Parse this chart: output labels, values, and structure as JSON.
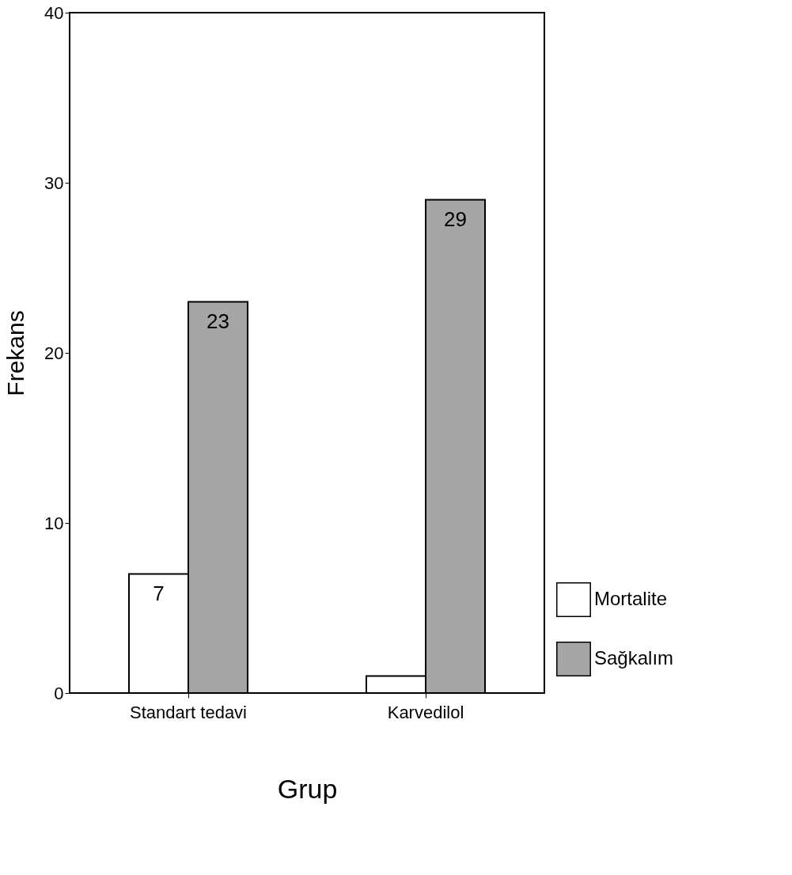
{
  "chart_data": {
    "type": "bar",
    "xlabel": "Grup",
    "ylabel": "Frekans",
    "categories": [
      "Standart tedavi",
      "Karvedilol"
    ],
    "series": [
      {
        "name": "Mortalite",
        "color": "#ffffff",
        "values": [
          7,
          1
        ],
        "value_labels": [
          "7",
          null
        ]
      },
      {
        "name": "Sağkalım",
        "color": "#a6a6a6",
        "values": [
          23,
          29
        ],
        "value_labels": [
          "23",
          "29"
        ]
      }
    ],
    "ylim": [
      0,
      40
    ],
    "yticks": [
      0,
      10,
      20,
      30,
      40
    ],
    "grid": false,
    "legend": "bottom right"
  }
}
